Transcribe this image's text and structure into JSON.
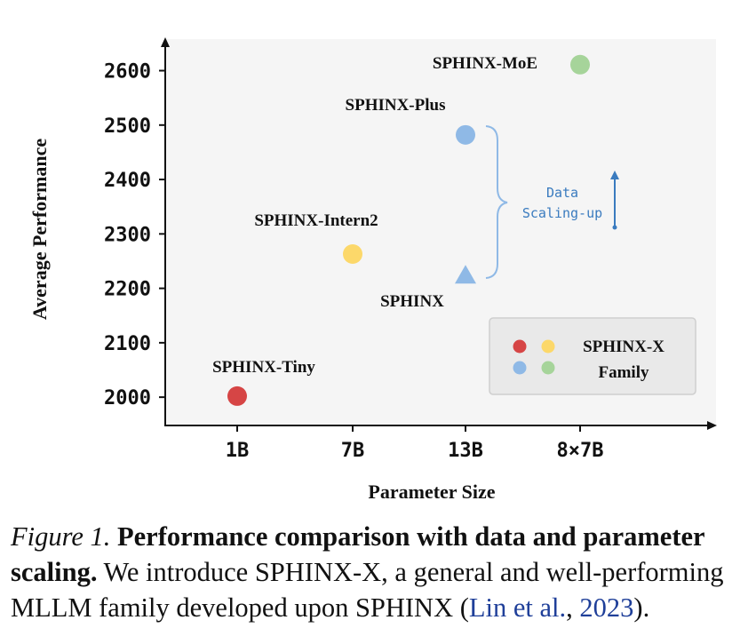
{
  "chart_data": {
    "type": "scatter",
    "xlabel": "Parameter Size",
    "ylabel": "Average Performance",
    "categories": [
      "1B",
      "7B",
      "13B",
      "8×7B"
    ],
    "yticks": [
      2000,
      2100,
      2200,
      2300,
      2400,
      2500,
      2600
    ],
    "ylim": [
      1948,
      2658
    ],
    "grid": false,
    "points": [
      {
        "label": "SPHINX-Tiny",
        "x": "1B",
        "y": 2002,
        "color": "#d64545",
        "marker": "circle"
      },
      {
        "label": "SPHINX-Intern2",
        "x": "7B",
        "y": 2263,
        "color": "#fcd86a",
        "marker": "circle"
      },
      {
        "label": "SPHINX",
        "x": "13B",
        "y": 2225,
        "color": "#8fb9e6",
        "marker": "triangle"
      },
      {
        "label": "SPHINX-Plus",
        "x": "13B",
        "y": 2482,
        "color": "#8fb9e6",
        "marker": "circle"
      },
      {
        "label": "SPHINX-MoE",
        "x": "8×7B",
        "y": 2611,
        "color": "#a6d49a",
        "marker": "circle"
      }
    ],
    "annotation": {
      "line1": "Data",
      "line2": "Scaling-up",
      "color": "#3a7bbf"
    },
    "legend": {
      "line1": "SPHINX-X",
      "line2": "Family",
      "placement": "bottom-right",
      "colors": [
        "#d64545",
        "#fcd86a",
        "#8fb9e6",
        "#a6d49a"
      ]
    }
  },
  "caption": {
    "figure_label": "Figure 1.",
    "bold_text": "Performance comparison with data and parameter scaling.",
    "text": "We introduce SPHINX-X, a general and well-performing MLLM family developed upon SPHINX (",
    "citation_author": "Lin et al.",
    "citation_sep": ", ",
    "citation_year": "2023",
    "text_end": ")."
  }
}
